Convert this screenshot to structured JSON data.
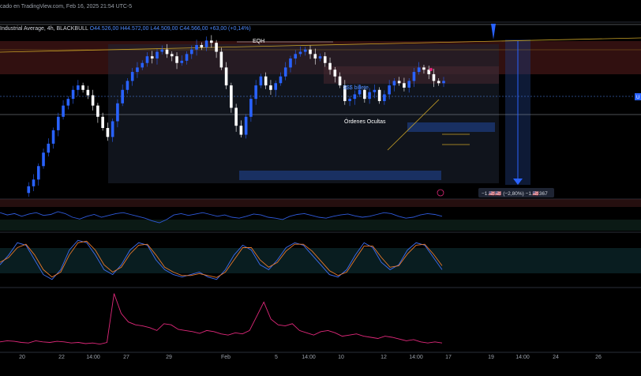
{
  "header": {
    "published_text": "cado en TradingView.com, Feb 16, 2025 21:54 UTC-5"
  },
  "legend": {
    "symbol_text": "Industrial Average, 4h, BLACKBULL",
    "o": "O44.526,00",
    "h": "H44.572,00",
    "l": "L44.509,00",
    "c": "C44.566,00",
    "chg": "+63,00 (+0,14%)"
  },
  "annotations": {
    "eqh": "EQH",
    "liquidity": "$$$ billete",
    "hidden_orders": "Órdenes Ocultas",
    "measure": "−1.🇺🇸🇺🇸 (−2,80%) −1.🇺🇸367",
    "right_price_tag": "U"
  },
  "colors": {
    "bull": "#2962ff",
    "bear": "#ffffff",
    "supply_zone": "#8b2c2c",
    "demand_zone": "#1c3a7a",
    "rsi_line": "#2e59d9",
    "stoch_k": "#3d6df2",
    "stoch_d": "#e8792b",
    "lower_line": "#e0287a",
    "trendline": "#c9a227"
  },
  "chart_data": [
    {
      "type": "line",
      "name": "price_4h",
      "title": "Industrial Average, 4h, BLACKBULL",
      "x_ticks": [
        "20",
        "22",
        "14:00",
        "27",
        "29",
        "Feb",
        "5",
        "14:00",
        "10",
        "12",
        "14:00",
        "17",
        "19",
        "14:00",
        "24",
        "26"
      ],
      "closes": [
        42200,
        42350,
        42500,
        42800,
        43100,
        43300,
        43600,
        43900,
        44150,
        44300,
        44500,
        44600,
        44500,
        44380,
        44150,
        43900,
        43650,
        43450,
        43800,
        44200,
        44500,
        44700,
        44900,
        45000,
        45100,
        45250,
        45200,
        45350,
        45400,
        45300,
        45250,
        45100,
        45150,
        45300,
        45400,
        45500,
        45450,
        45600,
        45550,
        45350,
        45000,
        44600,
        44100,
        43700,
        43500,
        43900,
        44300,
        44600,
        44800,
        44600,
        44500,
        44650,
        44800,
        45000,
        45200,
        45300,
        45350,
        45400,
        45300,
        45200,
        45250,
        45100,
        44950,
        44800,
        44600,
        44250,
        44300,
        44400,
        44500,
        44300,
        44450,
        44500,
        44250,
        44400,
        44600,
        44700,
        44650,
        44550,
        44700,
        44900,
        45000,
        44950,
        44850,
        44700,
        44650,
        44700
      ],
      "levels": {
        "eqh": 45650,
        "current": 44566
      }
    },
    {
      "type": "line",
      "name": "oscillator_1",
      "values": [
        60,
        55,
        58,
        52,
        57,
        60,
        54,
        56,
        62,
        58,
        50,
        46,
        52,
        56,
        50,
        54,
        58,
        60,
        56,
        52,
        48,
        42,
        38,
        45,
        55,
        58,
        54,
        57,
        60,
        56,
        52,
        55,
        50,
        48,
        52,
        57,
        55,
        50,
        48,
        45,
        52,
        56,
        58,
        54,
        50,
        48,
        52,
        55,
        57,
        53,
        50,
        52,
        56,
        60,
        58,
        52,
        48,
        50,
        55,
        58,
        56,
        52
      ]
    },
    {
      "type": "line",
      "name": "stochastic",
      "series": [
        {
          "values": [
            40,
            60,
            85,
            80,
            50,
            20,
            10,
            30,
            70,
            90,
            85,
            60,
            30,
            20,
            40,
            70,
            85,
            80,
            50,
            30,
            20,
            15,
            20,
            25,
            15,
            10,
            30,
            60,
            80,
            70,
            40,
            30,
            50,
            75,
            85,
            80,
            60,
            40,
            20,
            15,
            30,
            60,
            85,
            75,
            45,
            30,
            40,
            70,
            85,
            80,
            55,
            30
          ]
        },
        {
          "values": [
            45,
            55,
            75,
            82,
            60,
            30,
            15,
            25,
            60,
            85,
            88,
            70,
            40,
            25,
            35,
            62,
            80,
            82,
            60,
            35,
            25,
            18,
            18,
            22,
            18,
            14,
            25,
            50,
            75,
            75,
            50,
            35,
            45,
            68,
            82,
            82,
            68,
            48,
            28,
            18,
            25,
            52,
            78,
            78,
            55,
            35,
            38,
            62,
            80,
            82,
            62,
            38
          ]
        }
      ]
    },
    {
      "type": "line",
      "name": "lower_indicator",
      "values": [
        10,
        12,
        11,
        9,
        8,
        12,
        10,
        9,
        11,
        10,
        8,
        9,
        7,
        8,
        6,
        9,
        95,
        60,
        45,
        40,
        38,
        35,
        30,
        42,
        40,
        32,
        30,
        28,
        25,
        30,
        28,
        24,
        22,
        26,
        24,
        30,
        55,
        80,
        50,
        40,
        38,
        42,
        30,
        26,
        22,
        28,
        30,
        26,
        20,
        22,
        24,
        20,
        18,
        16,
        20,
        18,
        15,
        12,
        14,
        10,
        8,
        10,
        8
      ]
    }
  ]
}
